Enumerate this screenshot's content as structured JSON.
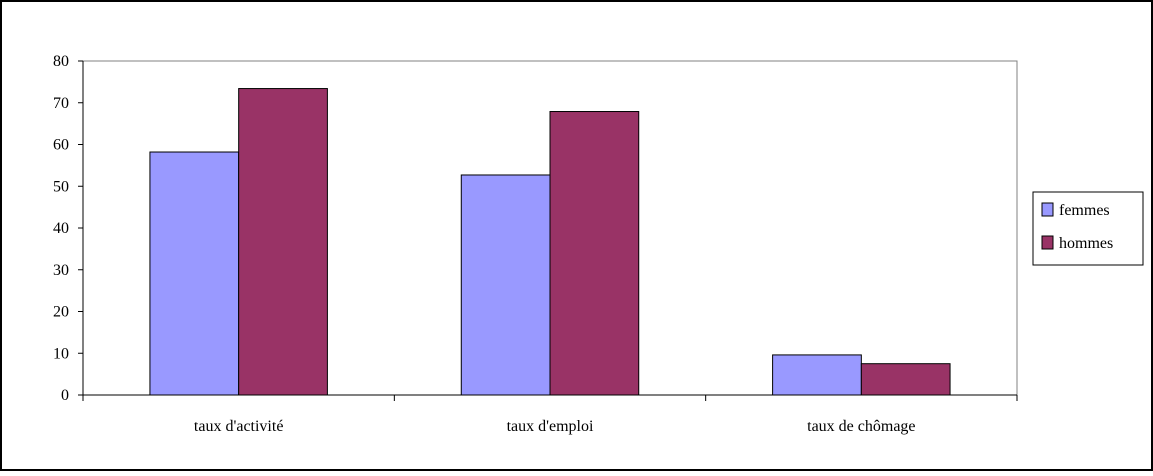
{
  "chart_data": {
    "type": "bar",
    "categories": [
      "taux d'activité",
      "taux d'emploi",
      "taux de chômage"
    ],
    "series": [
      {
        "name": "femmes",
        "values": [
          58.2,
          52.7,
          9.6
        ],
        "color": "#9999FF"
      },
      {
        "name": "hommes",
        "values": [
          73.4,
          67.9,
          7.5
        ],
        "color": "#993366"
      }
    ],
    "ylim": [
      0,
      80
    ],
    "yticks": [
      0,
      10,
      20,
      30,
      40,
      50,
      60,
      70,
      80
    ],
    "title": "",
    "xlabel": "",
    "ylabel": "",
    "grid": false,
    "legend_position": "right"
  }
}
